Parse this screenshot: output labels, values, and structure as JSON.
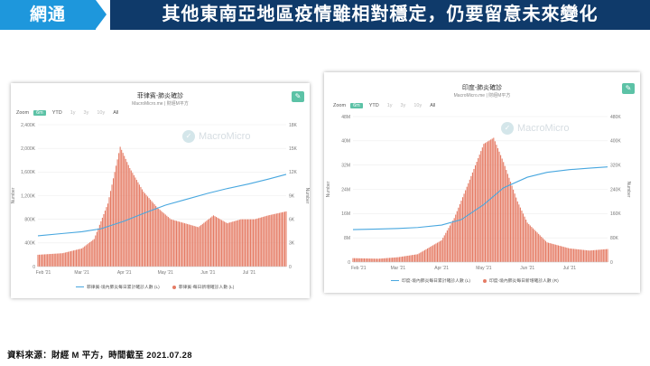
{
  "header": {
    "brand": "網通",
    "title": "其他東南亞地區疫情雖相對穩定，仍要留意未來變化",
    "colors": {
      "brand_bg": "#1e97dc",
      "title_bg": "#0f3a6a"
    }
  },
  "source_note": "資料來源：財經 M 平方，時間截至 2021.07.28",
  "chart_panels": [
    {
      "title": "菲律賓-肺炎確診",
      "subtitle": "MacroMicro.me | 財經M平方",
      "zoom_label": "Zoom",
      "zoom_options": [
        "6m",
        "YTD",
        "1y",
        "3y",
        "10y",
        "All"
      ],
      "zoom_selected": "6m",
      "watermark": "MacroMicro",
      "edit_icon": "pencil-icon",
      "left_axis_title": "Number",
      "right_axis_title": "Number",
      "left_ticks": [
        "0",
        "400K",
        "800K",
        "1,200K",
        "1,600K",
        "2,000K",
        "2,400K"
      ],
      "right_ticks": [
        "0",
        "3K",
        "6K",
        "9K",
        "12K",
        "15K",
        "18K"
      ],
      "x_ticks": [
        "Feb '21",
        "Mar '21",
        "Apr '21",
        "May '21",
        "Jun '21",
        "Jul '21"
      ],
      "legend": [
        "菲律賓-境內肺炎每日累計確診人數 (L)",
        "菲律賓-每日新增確診人數 (L)"
      ]
    },
    {
      "title": "印度-肺炎確診",
      "subtitle": "MacroMicro.me | 財經M平方",
      "zoom_label": "Zoom",
      "zoom_options": [
        "6m",
        "YTD",
        "1y",
        "3y",
        "10y",
        "All"
      ],
      "zoom_selected": "6m",
      "watermark": "MacroMicro",
      "edit_icon": "pencil-icon",
      "left_axis_title": "Number",
      "right_axis_title": "Number",
      "left_ticks": [
        "0",
        "8M",
        "16M",
        "24M",
        "32M",
        "40M",
        "48M"
      ],
      "right_ticks": [
        "0",
        "80K",
        "160K",
        "240K",
        "320K",
        "400K",
        "480K"
      ],
      "x_ticks": [
        "Feb '21",
        "Mar '21",
        "Apr '21",
        "May '21",
        "Jun '21",
        "Jul '21"
      ],
      "legend": [
        "印度-境內肺炎每日累計確診人數 (L)",
        "印度-境內肺炎每日新增確診人數 (R)"
      ]
    }
  ],
  "chart_data": [
    {
      "type": "bar+line",
      "title": "菲律賓-肺炎確診",
      "x": [
        "2021-01-28",
        "2021-07-28"
      ],
      "series": [
        {
          "name": "菲律賓-境內肺炎每日累計確診人數 (L)",
          "type": "line",
          "axis": "left",
          "x": [
            "2021-01-28",
            "2021-02-15",
            "2021-03-01",
            "2021-03-15",
            "2021-04-01",
            "2021-04-15",
            "2021-05-01",
            "2021-05-15",
            "2021-06-01",
            "2021-06-15",
            "2021-07-01",
            "2021-07-15",
            "2021-07-28"
          ],
          "values": [
            520000,
            560000,
            590000,
            640000,
            770000,
            900000,
            1040000,
            1130000,
            1240000,
            1320000,
            1400000,
            1480000,
            1560000
          ]
        },
        {
          "name": "菲律賓-每日新增確診人數 (L)",
          "type": "bar",
          "axis": "right",
          "x": [
            "2021-01-28",
            "2021-02-15",
            "2021-03-01",
            "2021-03-10",
            "2021-03-20",
            "2021-03-29",
            "2021-04-05",
            "2021-04-15",
            "2021-04-25",
            "2021-05-05",
            "2021-05-15",
            "2021-05-25",
            "2021-06-05",
            "2021-06-15",
            "2021-06-25",
            "2021-07-05",
            "2021-07-15",
            "2021-07-28"
          ],
          "values": [
            1500,
            1700,
            2300,
            3500,
            8000,
            15200,
            12500,
            9500,
            7500,
            6000,
            5500,
            5000,
            6500,
            5500,
            6000,
            6000,
            6500,
            7000
          ]
        }
      ],
      "ylim_left": [
        0,
        2400000
      ],
      "ylim_right": [
        0,
        18000
      ]
    },
    {
      "type": "bar+line",
      "title": "印度-肺炎確診",
      "x": [
        "2021-01-28",
        "2021-07-28"
      ],
      "series": [
        {
          "name": "印度-境內肺炎每日累計確診人數 (L)",
          "type": "line",
          "axis": "left",
          "x": [
            "2021-01-28",
            "2021-02-15",
            "2021-03-01",
            "2021-03-15",
            "2021-04-01",
            "2021-04-15",
            "2021-05-01",
            "2021-05-15",
            "2021-06-01",
            "2021-06-15",
            "2021-07-01",
            "2021-07-15",
            "2021-07-28"
          ],
          "values": [
            10700000,
            10900000,
            11100000,
            11400000,
            12200000,
            14000000,
            19000000,
            24500000,
            28000000,
            29600000,
            30500000,
            31000000,
            31400000
          ]
        },
        {
          "name": "印度-境內肺炎每日新增確診人數 (R)",
          "type": "bar",
          "axis": "right",
          "x": [
            "2021-01-28",
            "2021-02-15",
            "2021-03-01",
            "2021-03-15",
            "2021-04-01",
            "2021-04-10",
            "2021-04-20",
            "2021-05-01",
            "2021-05-08",
            "2021-05-15",
            "2021-05-25",
            "2021-06-01",
            "2021-06-15",
            "2021-07-01",
            "2021-07-15",
            "2021-07-28"
          ],
          "values": [
            13000,
            11000,
            16000,
            26000,
            72000,
            145000,
            260000,
            390000,
            410000,
            330000,
            200000,
            130000,
            65000,
            45000,
            38000,
            43000
          ]
        }
      ],
      "ylim_left": [
        0,
        48000000
      ],
      "ylim_right": [
        0,
        480000
      ]
    }
  ],
  "style": {
    "line_color": "#48a7df",
    "bar_color": "#e57b64",
    "accent": "#5cc2a6"
  }
}
